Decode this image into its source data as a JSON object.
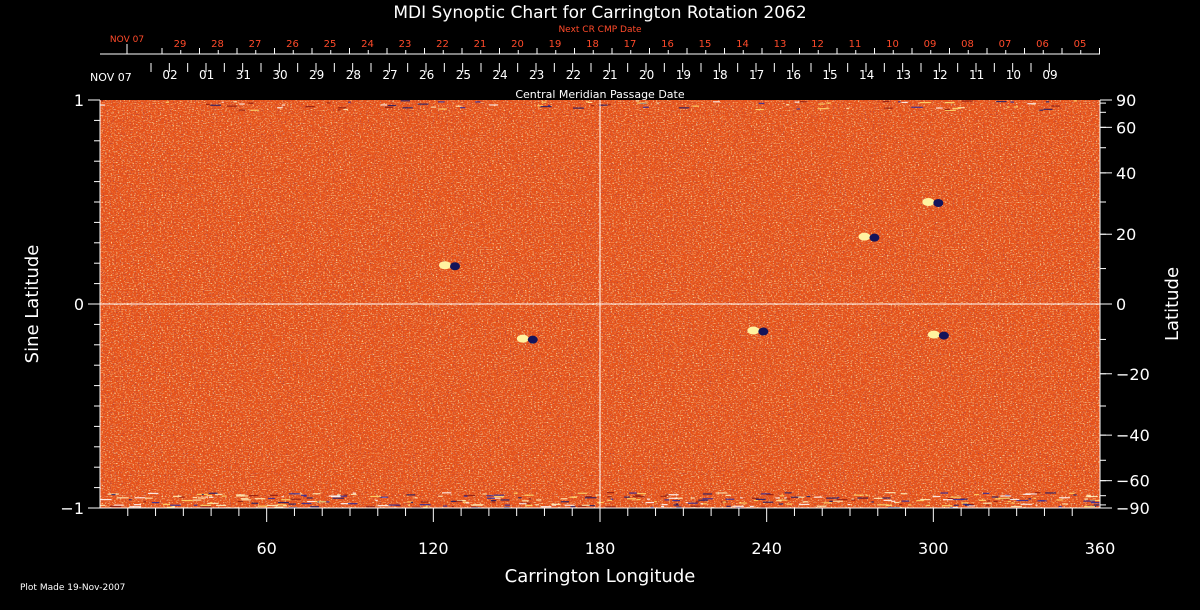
{
  "chart_data": {
    "type": "heatmap",
    "title": "MDI Synoptic Chart for Carrington Rotation 2062",
    "xlabel": "Carrington Longitude",
    "ylabel_left": "Sine Latitude",
    "ylabel_right": "Latitude",
    "x_range": [
      0,
      360
    ],
    "y_range": [
      -1,
      1
    ],
    "x_ticks": [
      60,
      120,
      180,
      240,
      300,
      360
    ],
    "y_left_ticks": [
      1,
      0,
      -1
    ],
    "y_right_ticks": [
      90,
      60,
      40,
      20,
      0,
      -20,
      -40,
      -60,
      -90
    ],
    "grid": "crosshair at longitude 180 and sine latitude 0",
    "next_cr_axis_title": "Next CR CMP Date",
    "next_cr_start": "NOV 07",
    "next_cr_dates": [
      "29",
      "28",
      "27",
      "26",
      "25",
      "24",
      "23",
      "22",
      "21",
      "20",
      "19",
      "18",
      "17",
      "16",
      "15",
      "14",
      "13",
      "12",
      "11",
      "10",
      "09",
      "08",
      "07",
      "06",
      "05"
    ],
    "cmp_axis_title": "Central Meridian Passage Date",
    "cmp_start": "NOV 07",
    "cmp_dates": [
      "02",
      "01",
      "31",
      "30",
      "29",
      "28",
      "27",
      "26",
      "25",
      "24",
      "23",
      "22",
      "21",
      "20",
      "19",
      "18",
      "17",
      "16",
      "15",
      "14",
      "13",
      "12",
      "11",
      "10",
      "09"
    ],
    "footer": "Plot Made 19-Nov-2007",
    "colors": {
      "background": "#000000",
      "field_base": "#e8541a",
      "axes": "#ffffff",
      "accent_text": "#ff4a2a",
      "negative_spots": "#1a1a6a",
      "positive_spots": "#ffe070"
    }
  }
}
